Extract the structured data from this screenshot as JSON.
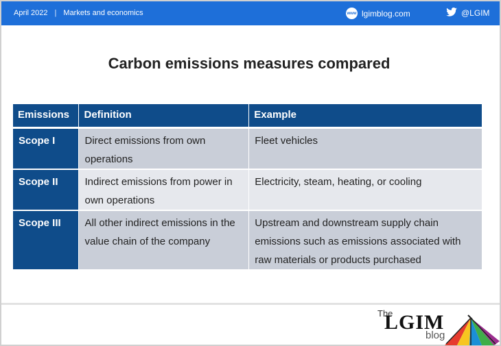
{
  "header": {
    "date": "April 2022",
    "separator": "|",
    "section": "Markets and economics",
    "site_badge": "www",
    "site": "lgimblog.com",
    "twitter": "@LGIM"
  },
  "title": "Carbon emissions measures compared",
  "table": {
    "headers": [
      "Emissions",
      "Definition",
      "Example"
    ],
    "rows": [
      {
        "scope": "Scope I",
        "definition": "Direct emissions from own operations",
        "example": "Fleet vehicles"
      },
      {
        "scope": "Scope II",
        "definition": "Indirect emissions from power in own operations",
        "example": "Electricity, steam, heating, or cooling"
      },
      {
        "scope": "Scope III",
        "definition": "All other indirect emissions in the value chain of the company",
        "example": "Upstream and downstream supply chain emissions such as emissions associated with raw materials or products purchased"
      }
    ]
  },
  "logo": {
    "the": "The",
    "name": "LGIM",
    "blog": "blog"
  },
  "colors": {
    "topbar": "#1e6fd9",
    "table_header": "#0f4c8a",
    "row_dark": "#c9ced8",
    "row_light": "#e6e8ed"
  }
}
